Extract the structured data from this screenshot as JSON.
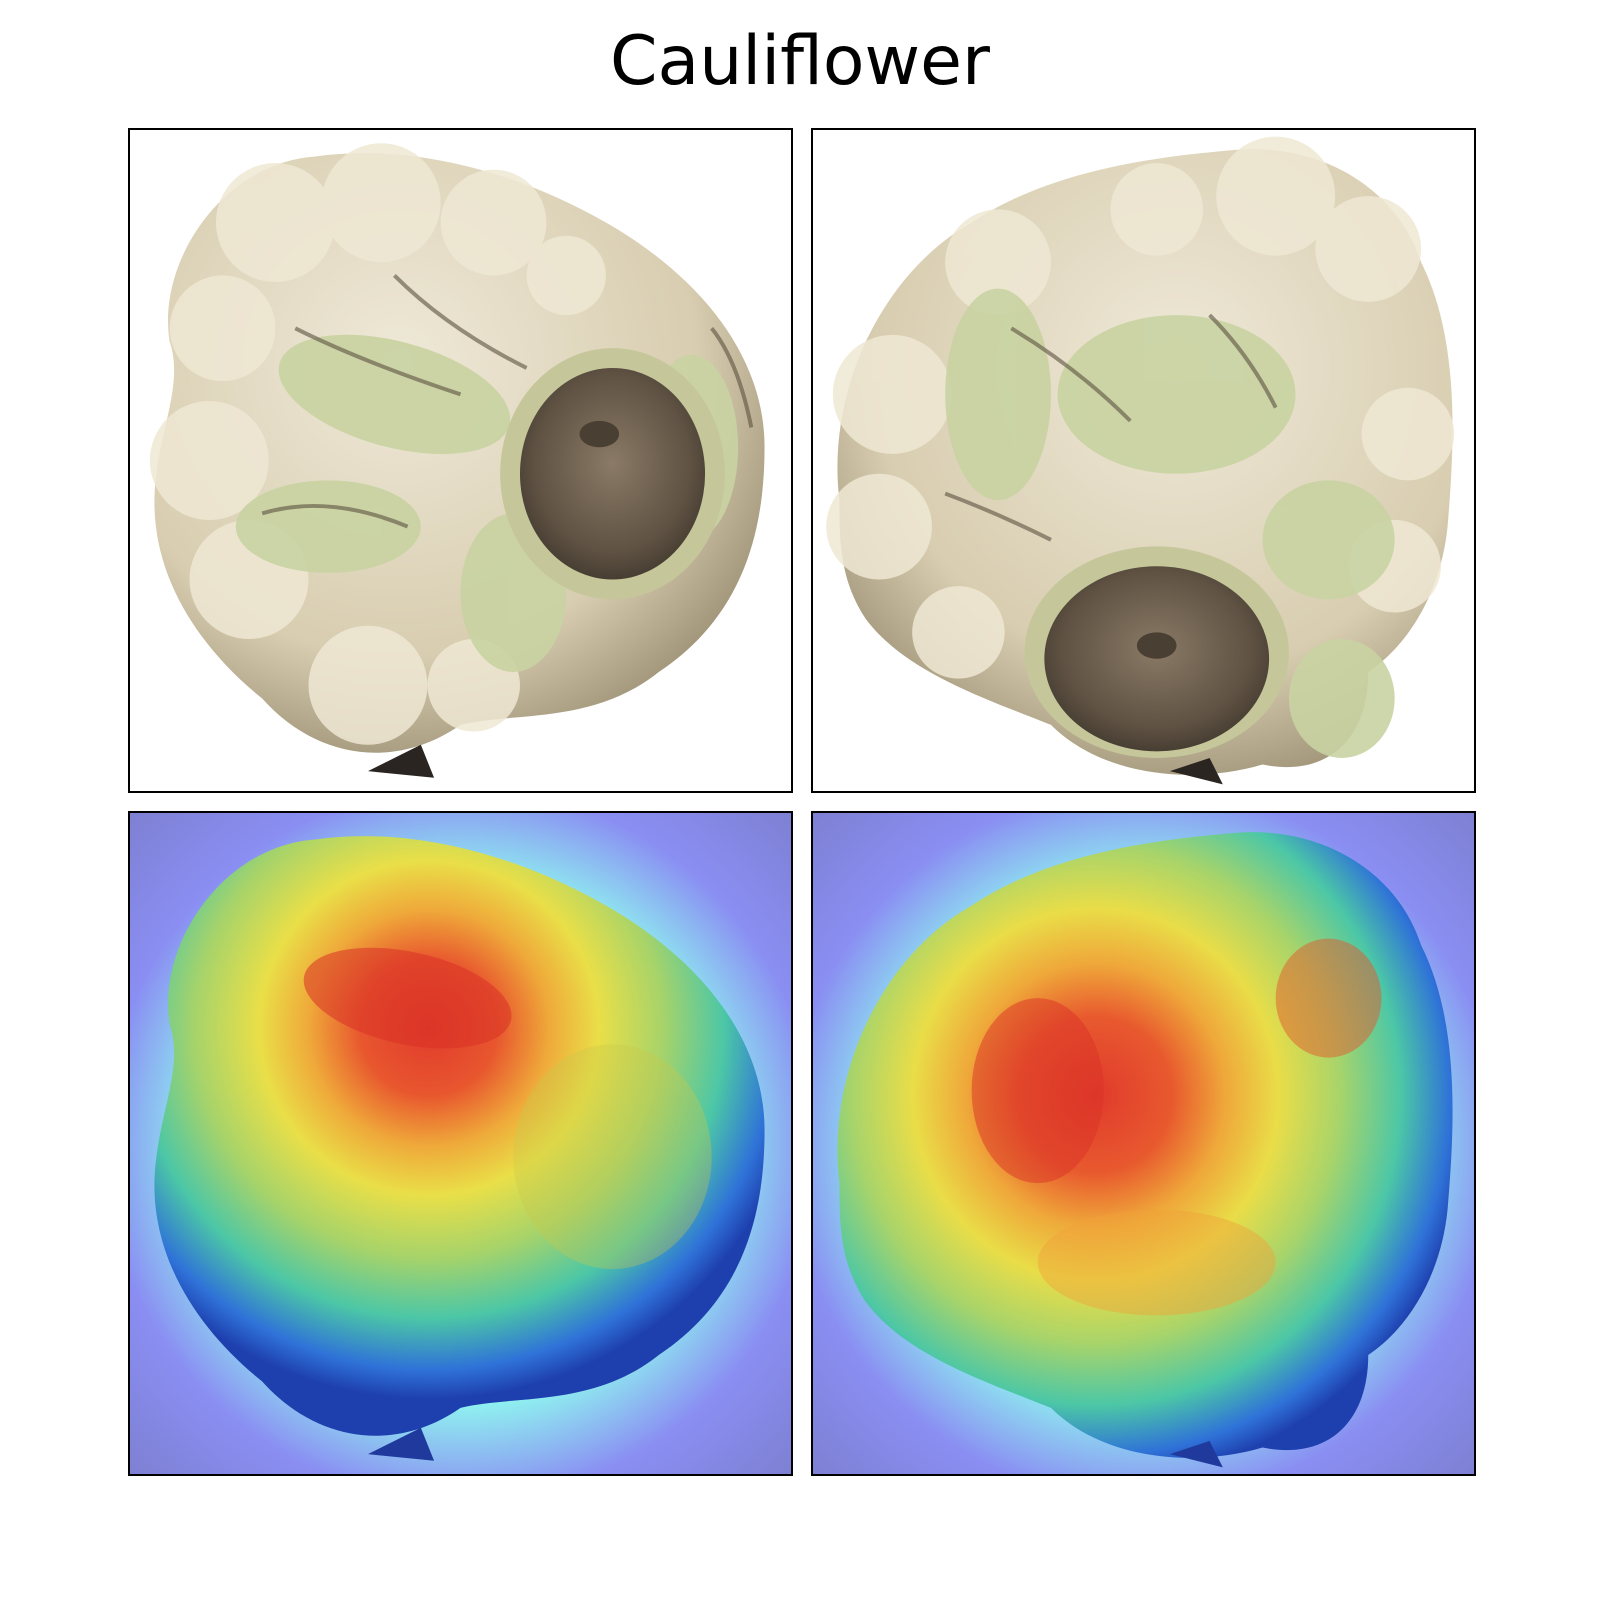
{
  "title": "Cauliflower",
  "panels": [
    {
      "kind": "photo",
      "view": "view-1"
    },
    {
      "kind": "photo",
      "view": "view-2"
    },
    {
      "kind": "heatmap-overlay",
      "view": "view-1"
    },
    {
      "kind": "heatmap-overlay",
      "view": "view-2"
    }
  ],
  "colors": {
    "floret": "#e4dcc8",
    "floret_shadow": "#b9ae92",
    "leaf": "#c7d19e",
    "stem_cut": "#6e6150",
    "heat_low": "#7f7fd0",
    "heat_mid": "#f2e24a",
    "heat_high": "#e23a2a"
  }
}
